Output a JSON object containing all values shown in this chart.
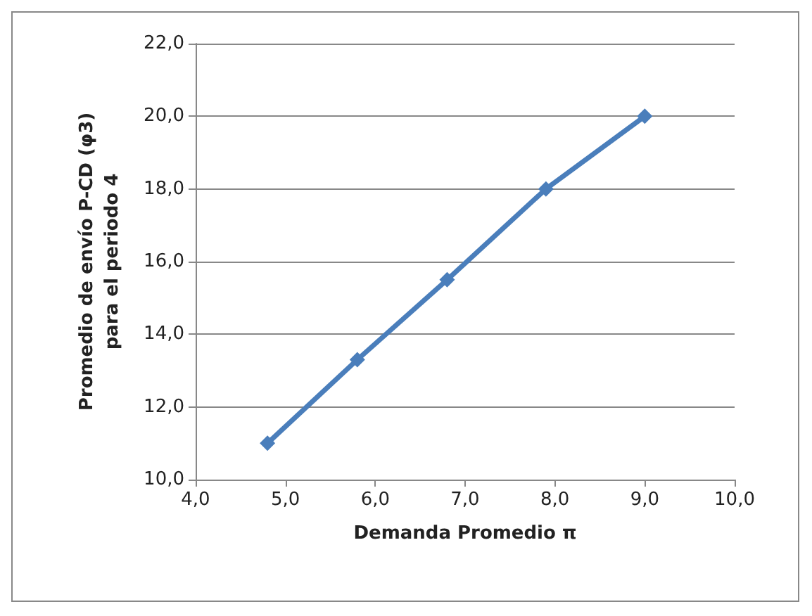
{
  "chart_data": {
    "type": "line",
    "xlabel": "Demanda Promedio π",
    "ylabel": "Promedio de envío P-CD (φ3)\npara el periodo 4",
    "x": [
      4.8,
      5.8,
      6.8,
      7.9,
      9.0
    ],
    "series": [
      {
        "color": "#4a7ebb",
        "values": [
          11.0,
          13.3,
          15.5,
          18.0,
          20.0
        ]
      }
    ],
    "xlim": [
      4,
      10
    ],
    "xticks": [
      {
        "value": 4,
        "label": "4,0"
      },
      {
        "value": 5,
        "label": "5,0"
      },
      {
        "value": 6,
        "label": "6,0"
      },
      {
        "value": 7,
        "label": "7,0"
      },
      {
        "value": 8,
        "label": "8,0"
      },
      {
        "value": 9,
        "label": "9,0"
      },
      {
        "value": 10,
        "label": "10,0"
      }
    ],
    "ylim": [
      10,
      22
    ],
    "yticks": [
      {
        "value": 10,
        "label": "10,0"
      },
      {
        "value": 12,
        "label": "12,0"
      },
      {
        "value": 14,
        "label": "14,0"
      },
      {
        "value": 16,
        "label": "16,0"
      },
      {
        "value": 18,
        "label": "18,0"
      },
      {
        "value": 20,
        "label": "20,0"
      },
      {
        "value": 22,
        "label": "22,0"
      }
    ],
    "grid": "y",
    "marker": "diamond",
    "line_style": "solid"
  }
}
